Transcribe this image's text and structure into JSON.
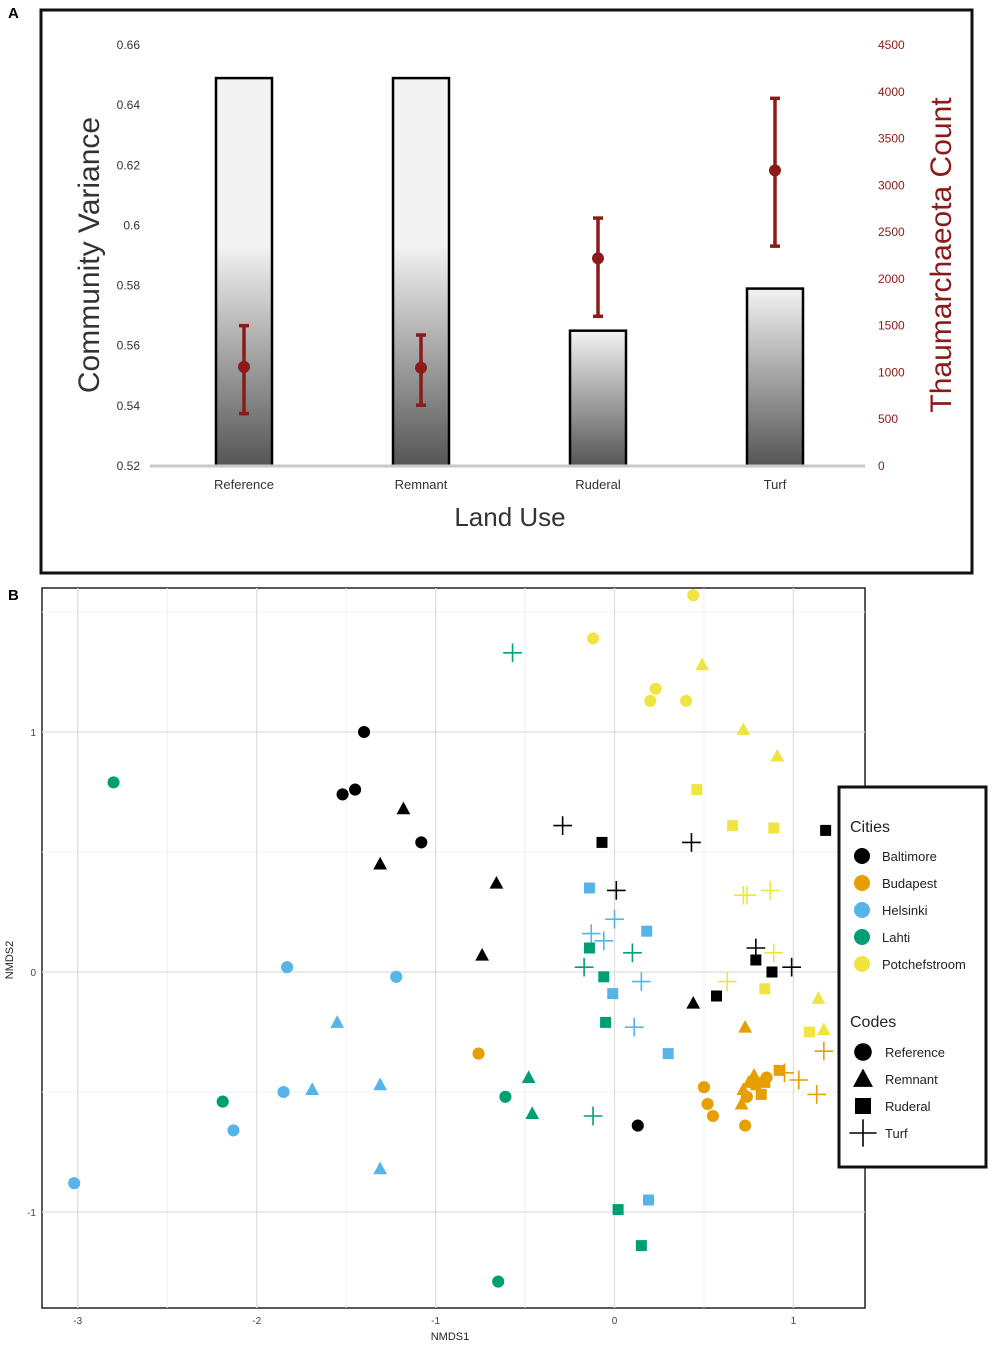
{
  "panels": {
    "a_label": "A",
    "b_label": "B"
  },
  "chart_data": [
    {
      "type": "bar",
      "panel": "A",
      "xlabel": "Land Use",
      "ylabel": "Community Variance",
      "y2label": "Thaumarchaeota Count",
      "categories": [
        "Reference",
        "Remnant",
        "Ruderal",
        "Turf"
      ],
      "bar_values": [
        0.649,
        0.649,
        0.565,
        0.579
      ],
      "ylim": [
        0.52,
        0.66
      ],
      "yticks": [
        "0.66",
        "0.64",
        "0.62",
        "0.6",
        "0.58",
        "0.56",
        "0.54",
        "0.52"
      ],
      "y2lim": [
        0,
        4500
      ],
      "y2ticks": [
        "4500",
        "4000",
        "3500",
        "3000",
        "2500",
        "2000",
        "1500",
        "1000",
        "500",
        "0"
      ],
      "points": {
        "mean": [
          1060,
          1050,
          2220,
          3160
        ],
        "lower": [
          560,
          650,
          1600,
          2350
        ],
        "upper": [
          1500,
          1400,
          2650,
          3930
        ]
      },
      "colors": {
        "points": "#8b1a1a",
        "bar_edge": "#000000",
        "axis2": "#8b1a1a"
      },
      "grid": false
    },
    {
      "type": "scatter",
      "panel": "B",
      "xlabel": "NMDS1",
      "ylabel": "NMDS2",
      "xlim": [
        -3.2,
        1.4
      ],
      "ylim": [
        -1.4,
        1.6
      ],
      "xticks": [
        "-3",
        "-2",
        "-1",
        "0",
        "1"
      ],
      "yticks": [
        "1",
        "0",
        "-1"
      ],
      "grid": true,
      "legend_position": "right",
      "legend_cities_title": "Cities",
      "legend_codes_title": "Codes",
      "cities": [
        {
          "name": "Baltimore",
          "color": "#000000"
        },
        {
          "name": "Budapest",
          "color": "#e69f00"
        },
        {
          "name": "Helsinki",
          "color": "#56b4e9"
        },
        {
          "name": "Lahti",
          "color": "#009e73"
        },
        {
          "name": "Potchefstroom",
          "color": "#f0e442"
        }
      ],
      "codes": [
        {
          "name": "Reference",
          "shape": "circle"
        },
        {
          "name": "Remnant",
          "shape": "triangle"
        },
        {
          "name": "Ruderal",
          "shape": "square"
        },
        {
          "name": "Turf",
          "shape": "plus"
        }
      ],
      "points": [
        [
          -1.4,
          1.0,
          0,
          0
        ],
        [
          -1.45,
          0.76,
          0,
          0
        ],
        [
          -1.52,
          0.74,
          0,
          0
        ],
        [
          -1.08,
          0.54,
          0,
          0
        ],
        [
          0.13,
          -0.64,
          0,
          0
        ],
        [
          -1.18,
          0.68,
          0,
          1
        ],
        [
          -1.31,
          0.45,
          0,
          1
        ],
        [
          -0.66,
          0.37,
          0,
          1
        ],
        [
          -0.74,
          0.07,
          0,
          1
        ],
        [
          0.44,
          -0.13,
          0,
          1
        ],
        [
          -0.07,
          0.54,
          0,
          2
        ],
        [
          0.57,
          -0.1,
          0,
          2
        ],
        [
          0.79,
          0.05,
          0,
          2
        ],
        [
          0.88,
          0.0,
          0,
          2
        ],
        [
          1.18,
          0.59,
          0,
          2
        ],
        [
          -0.29,
          0.61,
          0,
          3
        ],
        [
          0.01,
          0.34,
          0,
          3
        ],
        [
          0.43,
          0.54,
          0,
          3
        ],
        [
          0.79,
          0.1,
          0,
          3
        ],
        [
          0.99,
          0.02,
          0,
          3
        ],
        [
          -0.76,
          -0.34,
          1,
          0
        ],
        [
          0.5,
          -0.48,
          1,
          0
        ],
        [
          0.52,
          -0.55,
          1,
          0
        ],
        [
          0.55,
          -0.6,
          1,
          0
        ],
        [
          0.73,
          -0.64,
          1,
          0
        ],
        [
          0.74,
          -0.52,
          1,
          0
        ],
        [
          0.85,
          -0.44,
          1,
          0
        ],
        [
          0.73,
          -0.23,
          1,
          1
        ],
        [
          0.71,
          -0.55,
          1,
          1
        ],
        [
          0.78,
          -0.43,
          1,
          1
        ],
        [
          0.72,
          -0.49,
          1,
          1
        ],
        [
          0.75,
          -0.46,
          1,
          1
        ],
        [
          0.79,
          -0.47,
          1,
          2
        ],
        [
          0.82,
          -0.51,
          1,
          2
        ],
        [
          0.92,
          -0.41,
          1,
          2
        ],
        [
          0.84,
          -0.46,
          1,
          2
        ],
        [
          0.95,
          -0.42,
          1,
          3
        ],
        [
          1.03,
          -0.45,
          1,
          3
        ],
        [
          1.17,
          -0.33,
          1,
          3
        ],
        [
          1.13,
          -0.51,
          1,
          3
        ],
        [
          -1.83,
          0.02,
          2,
          0
        ],
        [
          -1.22,
          -0.02,
          2,
          0
        ],
        [
          -1.85,
          -0.5,
          2,
          0
        ],
        [
          -2.13,
          -0.66,
          2,
          0
        ],
        [
          -3.02,
          -0.88,
          2,
          0
        ],
        [
          -1.55,
          -0.21,
          2,
          1
        ],
        [
          -1.69,
          -0.49,
          2,
          1
        ],
        [
          -1.31,
          -0.47,
          2,
          1
        ],
        [
          -1.31,
          -0.82,
          2,
          1
        ],
        [
          -0.14,
          0.35,
          2,
          2
        ],
        [
          0.18,
          0.17,
          2,
          2
        ],
        [
          -0.01,
          -0.09,
          2,
          2
        ],
        [
          0.3,
          -0.34,
          2,
          2
        ],
        [
          0.19,
          -0.95,
          2,
          2
        ],
        [
          -0.13,
          0.16,
          2,
          3
        ],
        [
          -0.06,
          0.13,
          2,
          3
        ],
        [
          0.0,
          0.22,
          2,
          3
        ],
        [
          0.15,
          -0.04,
          2,
          3
        ],
        [
          0.11,
          -0.23,
          2,
          3
        ],
        [
          -2.8,
          0.79,
          3,
          0
        ],
        [
          -2.19,
          -0.54,
          3,
          0
        ],
        [
          -0.61,
          -0.52,
          3,
          0
        ],
        [
          -0.65,
          -1.29,
          3,
          0
        ],
        [
          -0.48,
          -0.44,
          3,
          1
        ],
        [
          -0.46,
          -0.59,
          3,
          1
        ],
        [
          -0.14,
          0.1,
          3,
          2
        ],
        [
          -0.06,
          -0.02,
          3,
          2
        ],
        [
          -0.05,
          -0.21,
          3,
          2
        ],
        [
          0.02,
          -0.99,
          3,
          2
        ],
        [
          0.15,
          -1.14,
          3,
          2
        ],
        [
          -0.57,
          1.33,
          3,
          3
        ],
        [
          -0.17,
          0.02,
          3,
          3
        ],
        [
          0.1,
          0.08,
          3,
          3
        ],
        [
          -0.12,
          -0.6,
          3,
          3
        ],
        [
          0.44,
          1.57,
          4,
          0
        ],
        [
          -0.12,
          1.39,
          4,
          0
        ],
        [
          0.23,
          1.18,
          4,
          0
        ],
        [
          0.2,
          1.13,
          4,
          0
        ],
        [
          0.4,
          1.13,
          4,
          0
        ],
        [
          0.49,
          1.28,
          4,
          1
        ],
        [
          0.72,
          1.01,
          4,
          1
        ],
        [
          0.91,
          0.9,
          4,
          1
        ],
        [
          1.14,
          -0.11,
          4,
          1
        ],
        [
          1.17,
          -0.24,
          4,
          1
        ],
        [
          0.46,
          0.76,
          4,
          2
        ],
        [
          0.66,
          0.61,
          4,
          2
        ],
        [
          0.89,
          0.6,
          4,
          2
        ],
        [
          0.84,
          -0.07,
          4,
          2
        ],
        [
          1.09,
          -0.25,
          4,
          2
        ],
        [
          0.72,
          0.32,
          4,
          3
        ],
        [
          0.74,
          0.32,
          4,
          3
        ],
        [
          0.87,
          0.34,
          4,
          3
        ],
        [
          0.89,
          0.08,
          4,
          3
        ],
        [
          0.63,
          -0.04,
          4,
          3
        ]
      ]
    }
  ]
}
